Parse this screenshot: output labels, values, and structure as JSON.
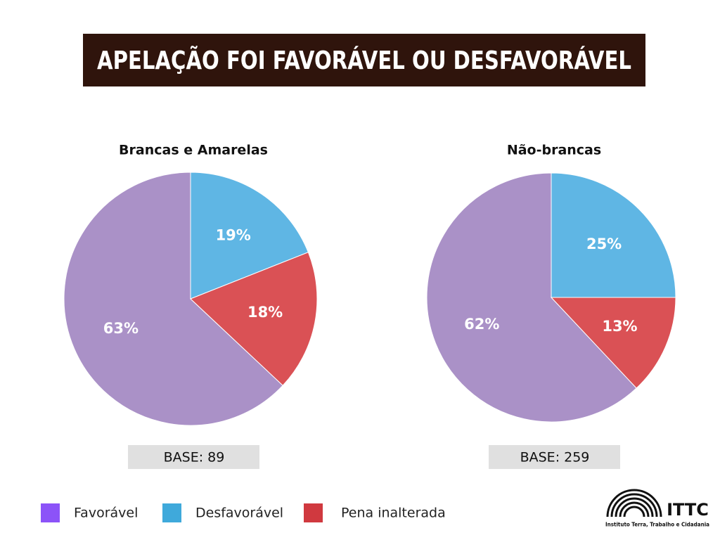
{
  "header": {
    "title": "APELAÇÃO FOI FAVORÁVEL OU DESFAVORÁVEL"
  },
  "chart_data": [
    {
      "type": "pie",
      "title": "Brancas e Amarelas",
      "categories": [
        "Favorável",
        "Desfavorável",
        "Pena inalterada"
      ],
      "values": [
        63,
        19,
        18
      ],
      "value_labels": [
        "63%",
        "19%",
        "18%"
      ],
      "colors": [
        "#aa91c7",
        "#5fb6e4",
        "#da5155"
      ],
      "note": "BASE: 89"
    },
    {
      "type": "pie",
      "title": "Não-brancas",
      "categories": [
        "Favorável",
        "Desfavorável",
        "Pena inalterada"
      ],
      "values": [
        62,
        25,
        13
      ],
      "value_labels": [
        "62%",
        "25%",
        "13%"
      ],
      "colors": [
        "#aa91c7",
        "#5fb6e4",
        "#da5155"
      ],
      "note": "BASE: 259"
    }
  ],
  "legend": {
    "colors": [
      "#8c53f8",
      "#3fa9db",
      "#d0393f"
    ]
  },
  "logo": {
    "name": "ITTC",
    "subtitle": "Instituto Terra, Trabalho e Cidadania"
  }
}
